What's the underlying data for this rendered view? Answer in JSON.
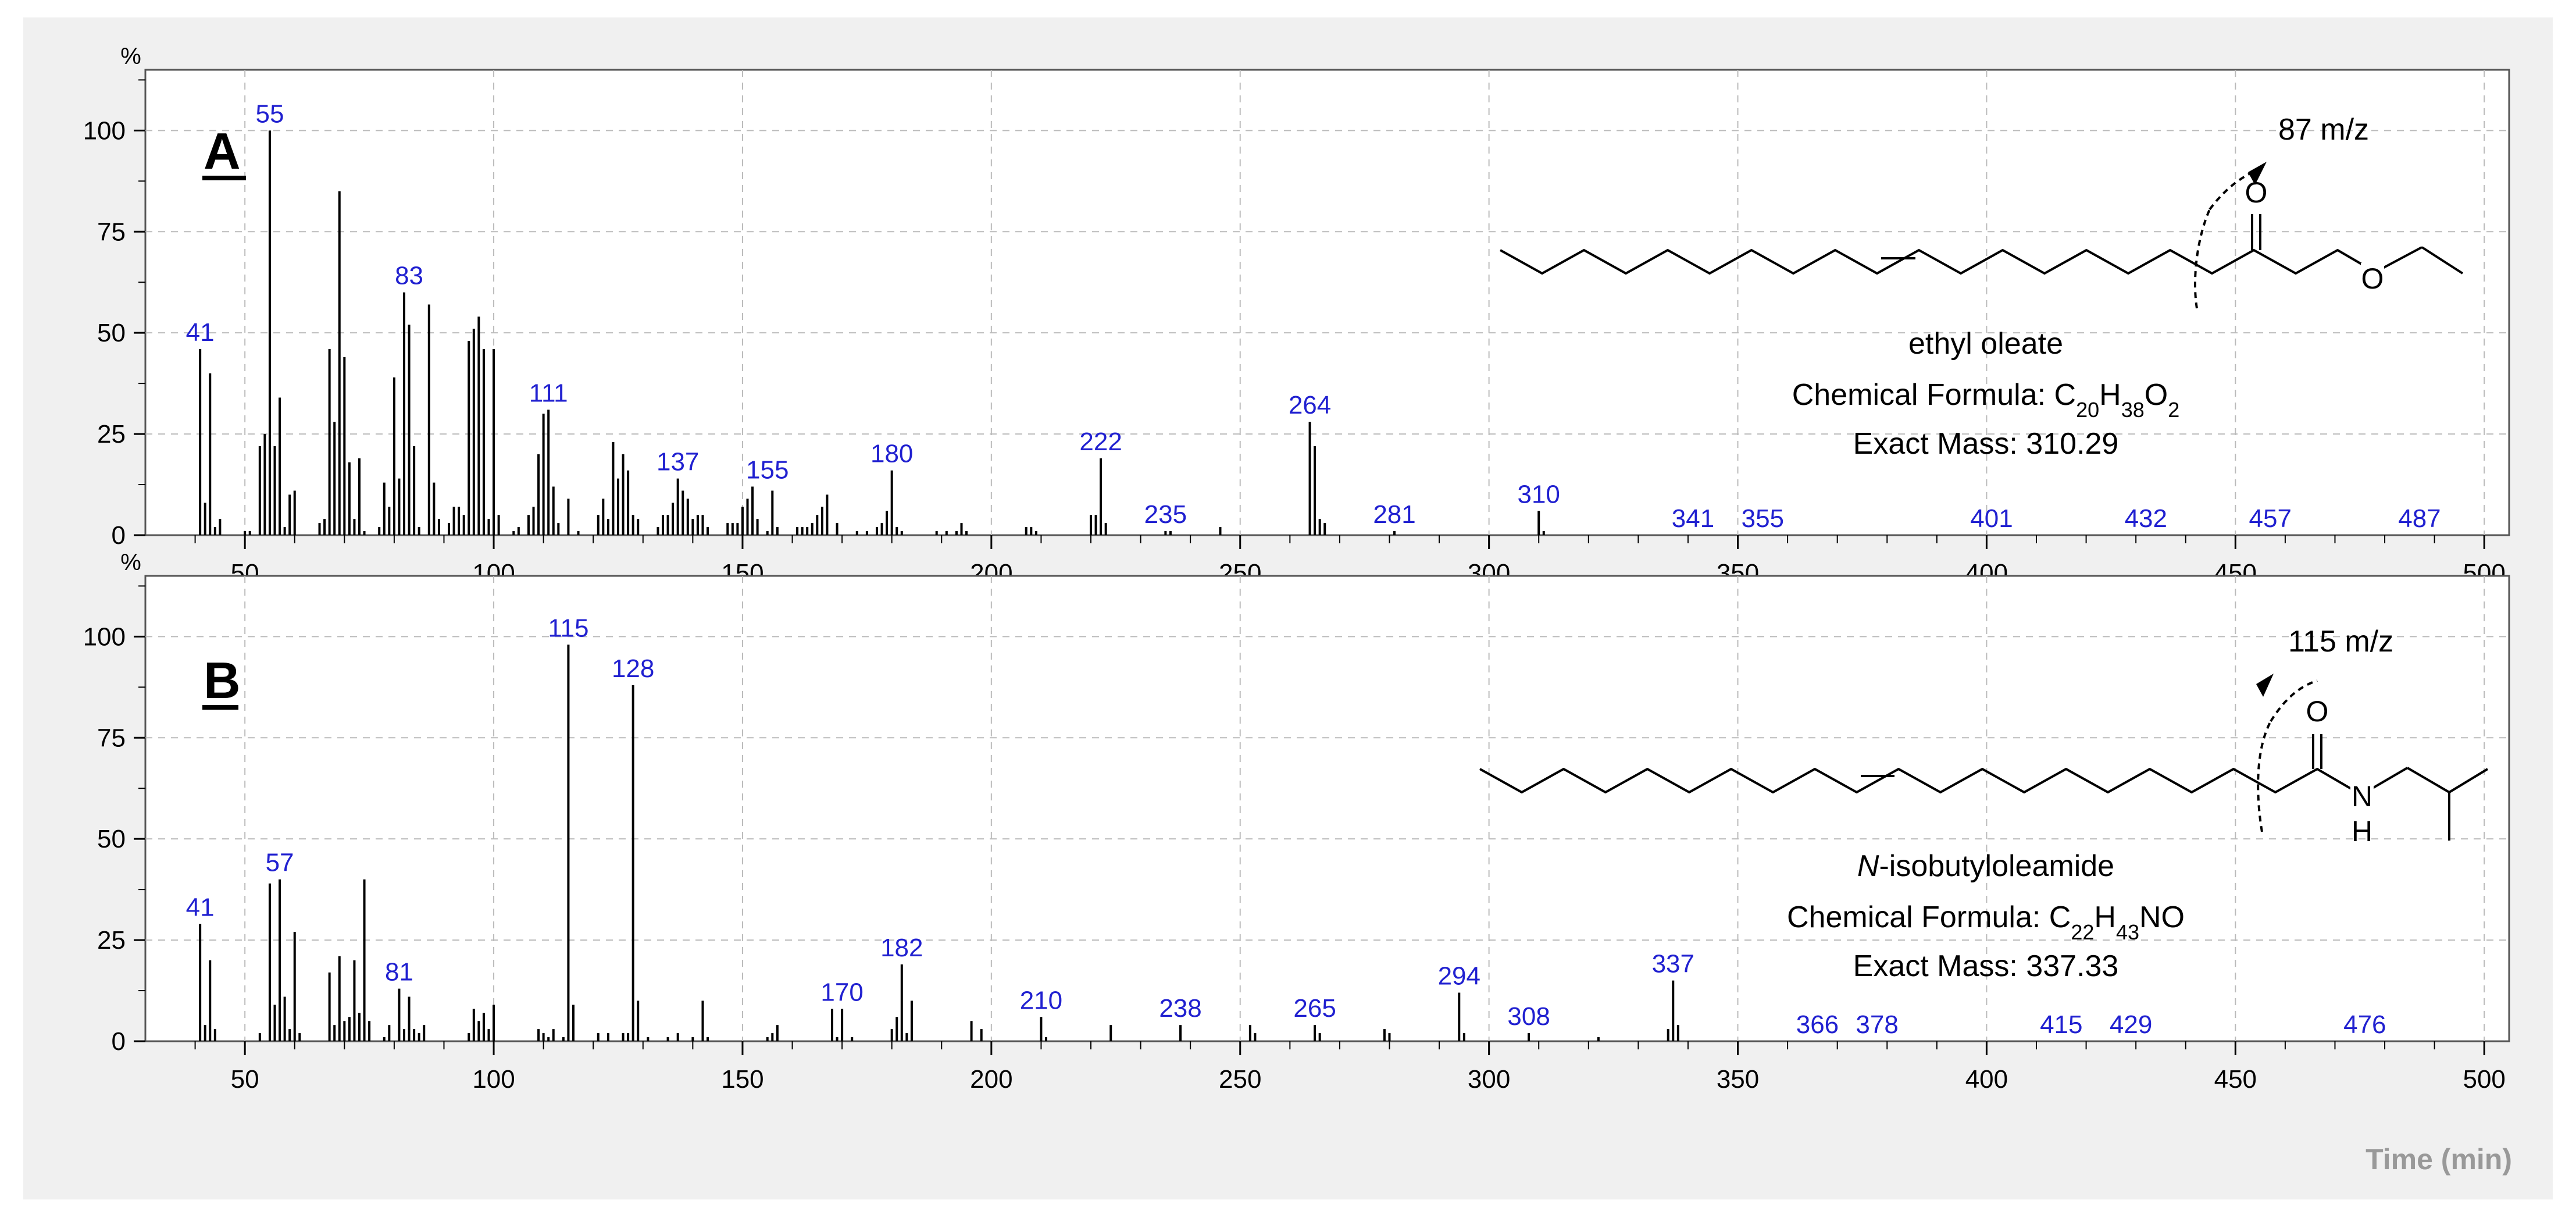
{
  "colors": {
    "frame_bg": "#f0f0f0",
    "plot_bg": "#ffffff",
    "peak": "#000000",
    "peak_label": "#2020d0",
    "grid": "#bbbbbb",
    "axis_text": "#000000",
    "time_label": "#999999"
  },
  "x_axis_label": "Time (min)",
  "chart_data": [
    {
      "type": "bar",
      "panel_label": "A",
      "y_unit_label": "%",
      "xlim": [
        30,
        505
      ],
      "ylim": [
        0,
        115
      ],
      "x_ticks": [
        "50",
        "100",
        "150",
        "200",
        "250",
        "300",
        "350",
        "400",
        "450",
        "500"
      ],
      "y_ticks": [
        "0",
        "25",
        "50",
        "75",
        "100"
      ],
      "grid": true,
      "peaks_x": [
        41,
        42,
        43,
        44,
        45,
        50,
        51,
        53,
        54,
        55,
        56,
        57,
        58,
        59,
        60,
        65,
        66,
        67,
        68,
        69,
        70,
        71,
        72,
        73,
        74,
        77,
        78,
        79,
        80,
        81,
        82,
        83,
        84,
        85,
        87,
        88,
        89,
        91,
        92,
        93,
        94,
        95,
        96,
        97,
        98,
        99,
        100,
        101,
        104,
        105,
        107,
        108,
        109,
        110,
        111,
        112,
        113,
        115,
        117,
        121,
        122,
        123,
        124,
        125,
        126,
        127,
        128,
        129,
        133,
        134,
        135,
        136,
        137,
        138,
        139,
        140,
        141,
        142,
        143,
        147,
        148,
        149,
        150,
        151,
        152,
        153,
        155,
        156,
        157,
        161,
        162,
        163,
        164,
        165,
        166,
        167,
        169,
        173,
        175,
        177,
        178,
        179,
        180,
        181,
        182,
        189,
        191,
        193,
        194,
        195,
        207,
        208,
        209,
        220,
        221,
        222,
        223,
        235,
        236,
        246,
        264,
        265,
        266,
        267,
        281,
        310,
        311
      ],
      "peaks_y": [
        46,
        8,
        40,
        2,
        4,
        1,
        1,
        22,
        25,
        100,
        22,
        34,
        2,
        10,
        11,
        3,
        4,
        46,
        28,
        85,
        44,
        18,
        4,
        19,
        1,
        2,
        13,
        7,
        39,
        14,
        60,
        52,
        22,
        2,
        57,
        13,
        4,
        3,
        7,
        7,
        5,
        48,
        51,
        54,
        46,
        4,
        46,
        5,
        1,
        2,
        5,
        7,
        20,
        30,
        31,
        12,
        3,
        9,
        1,
        5,
        9,
        4,
        23,
        14,
        20,
        16,
        5,
        4,
        2,
        5,
        5,
        8,
        14,
        11,
        9,
        4,
        5,
        5,
        2,
        3,
        3,
        3,
        7,
        9,
        12,
        4,
        1,
        11,
        2,
        2,
        2,
        2,
        3,
        5,
        7,
        10,
        3,
        1,
        1,
        2,
        3,
        6,
        16,
        2,
        1,
        1,
        1,
        1,
        3,
        1,
        2,
        2,
        1,
        5,
        5,
        19,
        3,
        1,
        1,
        2,
        28,
        22,
        4,
        3,
        1,
        6,
        1
      ],
      "peak_labels": [
        {
          "x": 41,
          "text": "41",
          "y": 46
        },
        {
          "x": 55,
          "text": "55",
          "y": 100
        },
        {
          "x": 83,
          "text": "83",
          "y": 60
        },
        {
          "x": 111,
          "text": "111",
          "y": 31
        },
        {
          "x": 137,
          "text": "137",
          "y": 14
        },
        {
          "x": 155,
          "text": "155",
          "y": 12
        },
        {
          "x": 180,
          "text": "180",
          "y": 16
        },
        {
          "x": 222,
          "text": "222",
          "y": 19
        },
        {
          "x": 235,
          "text": "235",
          "y": 1
        },
        {
          "x": 264,
          "text": "264",
          "y": 28
        },
        {
          "x": 281,
          "text": "281",
          "y": 1
        },
        {
          "x": 310,
          "text": "310",
          "y": 6
        },
        {
          "x": 341,
          "text": "341",
          "y": 0
        },
        {
          "x": 355,
          "text": "355",
          "y": 0
        },
        {
          "x": 401,
          "text": "401",
          "y": 0
        },
        {
          "x": 432,
          "text": "432",
          "y": 0
        },
        {
          "x": 457,
          "text": "457",
          "y": 0
        },
        {
          "x": 487,
          "text": "487",
          "y": 0
        }
      ],
      "annotation": {
        "fragment": "87 m/z",
        "ester_atom": "O",
        "carbonyl_atom": "O",
        "compound_name": "ethyl oleate",
        "formula_prefix": "Chemical Formula: ",
        "formula_parts": [
          {
            "t": "C"
          },
          {
            "t": "20",
            "sub": true
          },
          {
            "t": "H"
          },
          {
            "t": "38",
            "sub": true
          },
          {
            "t": "O"
          },
          {
            "t": "2",
            "sub": true
          }
        ],
        "exact_mass": "Exact Mass: 310.29"
      }
    },
    {
      "type": "bar",
      "panel_label": "B",
      "y_unit_label": "%",
      "xlim": [
        30,
        505
      ],
      "ylim": [
        0,
        115
      ],
      "x_ticks": [
        "50",
        "100",
        "150",
        "200",
        "250",
        "300",
        "350",
        "400",
        "450",
        "500"
      ],
      "y_ticks": [
        "0",
        "25",
        "50",
        "75",
        "100"
      ],
      "grid": true,
      "peaks_x": [
        41,
        42,
        43,
        44,
        53,
        55,
        56,
        57,
        58,
        59,
        60,
        61,
        67,
        68,
        69,
        70,
        71,
        72,
        73,
        74,
        75,
        78,
        79,
        81,
        82,
        83,
        84,
        85,
        86,
        95,
        96,
        97,
        98,
        99,
        100,
        109,
        110,
        111,
        112,
        114,
        115,
        116,
        121,
        123,
        126,
        127,
        128,
        129,
        131,
        135,
        137,
        140,
        142,
        143,
        155,
        156,
        157,
        168,
        169,
        170,
        172,
        180,
        181,
        182,
        183,
        184,
        196,
        198,
        210,
        211,
        224,
        238,
        252,
        253,
        265,
        266,
        279,
        280,
        294,
        295,
        308,
        322,
        336,
        337,
        338
      ],
      "peaks_y": [
        29,
        4,
        20,
        3,
        2,
        39,
        9,
        40,
        11,
        3,
        27,
        2,
        17,
        4,
        21,
        5,
        6,
        20,
        7,
        40,
        5,
        1,
        4,
        13,
        3,
        11,
        3,
        2,
        4,
        2,
        8,
        5,
        7,
        3,
        9,
        3,
        2,
        1,
        3,
        1,
        98,
        9,
        2,
        2,
        2,
        2,
        88,
        10,
        1,
        1,
        2,
        1,
        10,
        1,
        1,
        2,
        4,
        8,
        1,
        8,
        1,
        3,
        6,
        19,
        2,
        10,
        5,
        3,
        6,
        1,
        4,
        4,
        4,
        2,
        4,
        2,
        3,
        2,
        12,
        2,
        2,
        1,
        3,
        15,
        4
      ],
      "peak_labels": [
        {
          "x": 41,
          "text": "41",
          "y": 29
        },
        {
          "x": 57,
          "text": "57",
          "y": 40
        },
        {
          "x": 81,
          "text": "81",
          "y": 13
        },
        {
          "x": 115,
          "text": "115",
          "y": 98
        },
        {
          "x": 128,
          "text": "128",
          "y": 88
        },
        {
          "x": 170,
          "text": "170",
          "y": 8
        },
        {
          "x": 182,
          "text": "182",
          "y": 19
        },
        {
          "x": 210,
          "text": "210",
          "y": 6
        },
        {
          "x": 238,
          "text": "238",
          "y": 4
        },
        {
          "x": 265,
          "text": "265",
          "y": 4
        },
        {
          "x": 294,
          "text": "294",
          "y": 12
        },
        {
          "x": 308,
          "text": "308",
          "y": 2
        },
        {
          "x": 337,
          "text": "337",
          "y": 15
        },
        {
          "x": 366,
          "text": "366",
          "y": 0
        },
        {
          "x": 378,
          "text": "378",
          "y": 0
        },
        {
          "x": 415,
          "text": "415",
          "y": 0
        },
        {
          "x": 429,
          "text": "429",
          "y": 0
        },
        {
          "x": 476,
          "text": "476",
          "y": 0
        }
      ],
      "annotation": {
        "fragment": "115 m/z",
        "carbonyl_atom": "O",
        "amide_n": "N",
        "amide_h": "H",
        "compound_name_italic": "N",
        "compound_name_rest": "-isobutyloleamide",
        "formula_prefix": "Chemical Formula: ",
        "formula_parts": [
          {
            "t": "C"
          },
          {
            "t": "22",
            "sub": true
          },
          {
            "t": "H"
          },
          {
            "t": "43",
            "sub": true
          },
          {
            "t": "NO"
          }
        ],
        "exact_mass": "Exact Mass: 337.33"
      }
    }
  ]
}
